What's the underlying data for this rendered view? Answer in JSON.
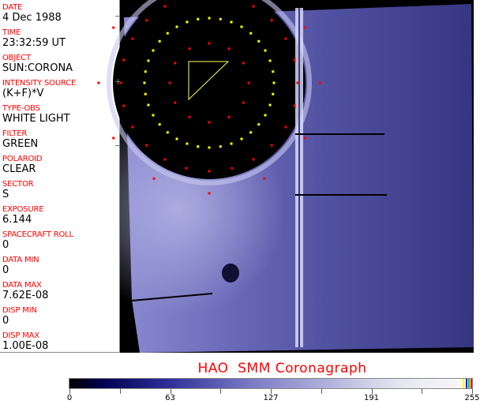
{
  "info_panel": [
    {
      "label": "DATE",
      "value": "4 Dec 1988"
    },
    {
      "label": "TIME",
      "value": "23:32:59 UT"
    },
    {
      "label": "OBJECT",
      "value": "SUN:CORONA"
    },
    {
      "label": "INTENSITY SOURCE",
      "value": "(K+F)*V"
    },
    {
      "label": "TYPE-OBS",
      "value": "WHITE LIGHT"
    },
    {
      "label": "FILTER",
      "value": "GREEN"
    },
    {
      "label": "POLAROID",
      "value": "CLEAR"
    },
    {
      "label": "SECTOR",
      "value": "S"
    },
    {
      "label": "EXPOSURE",
      "value": "6.144"
    },
    {
      "label": "SPACECRAFT ROLL",
      "value": "0"
    },
    {
      "label": "DATA MIN",
      "value": "0"
    },
    {
      "label": "DATA MAX",
      "value": "7.62E-08"
    },
    {
      "label": "DISP MIN",
      "value": "0"
    },
    {
      "label": "DISP MAX",
      "value": "1.00E-08"
    }
  ],
  "title": "HAO  SMM Coronagraph",
  "colorbar": {
    "ticks": [
      "0",
      "63",
      "127",
      "191",
      "255"
    ],
    "min": 0,
    "max": 255,
    "end_colors": [
      "#ffff00",
      "#0000ff",
      "#00c000",
      "#ff0000"
    ]
  },
  "colors": {
    "label": "#ff0000",
    "occulter_marks": "#ffff00",
    "grid_marks": "#ff0000",
    "corona": "#5a5aa8"
  }
}
